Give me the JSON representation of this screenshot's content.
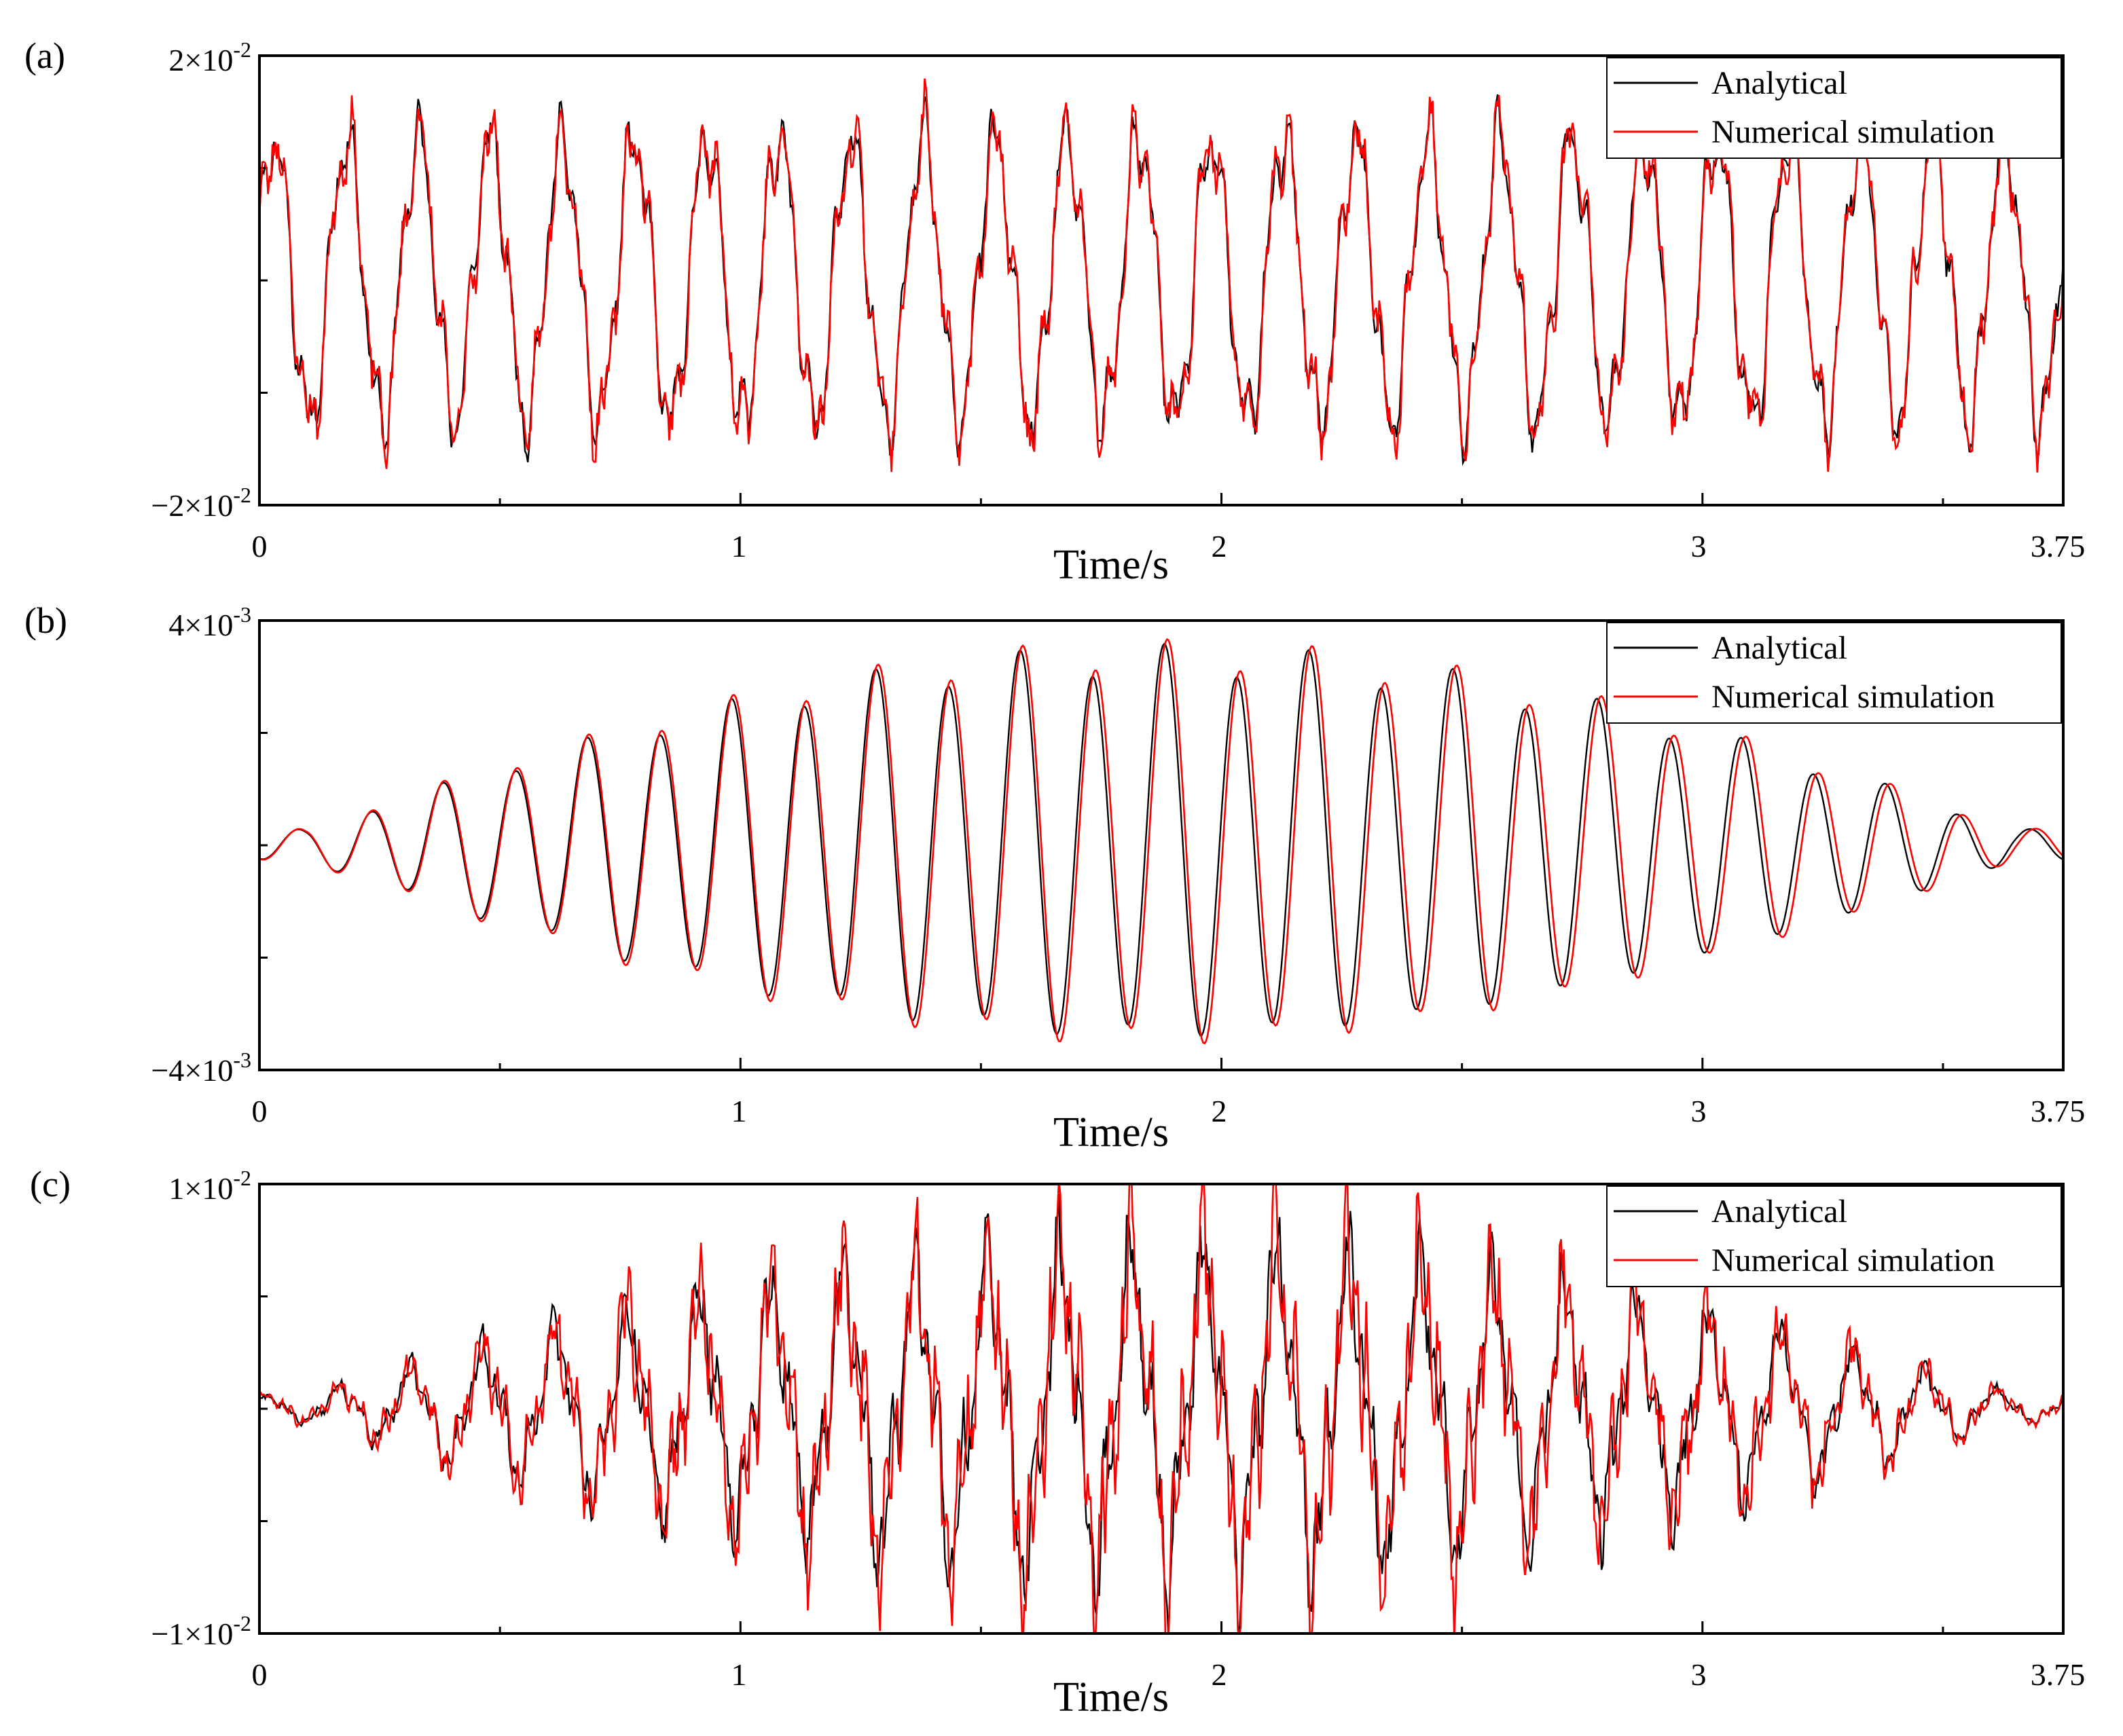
{
  "colors": {
    "analytical": "#000000",
    "numerical": "#ff0000",
    "axis": "#000000",
    "background": "#ffffff"
  },
  "chart_data": [
    {
      "type": "line",
      "panel_label": "(a)",
      "xlabel": "Time/s",
      "xlim": [
        0,
        3.75
      ],
      "x_ticks": [
        0,
        1,
        2,
        3,
        3.75
      ],
      "x_tick_labels": [
        "0",
        "1",
        "2",
        "3",
        "3.75"
      ],
      "ylim": [
        -0.02,
        0.02
      ],
      "y_tick_labels": {
        "top": {
          "base": "2×10",
          "exp": "-2"
        },
        "bottom": {
          "base": "−2×10",
          "exp": "-2"
        }
      },
      "legend": {
        "position": "top-right",
        "entries": [
          "Analytical",
          "Numerical simulation"
        ]
      },
      "signal": {
        "sampling_dt": 0.003,
        "analytical": {
          "offset": 0.0,
          "envelope_start": 0.0,
          "envelope_end": 3.75,
          "envelope_shape": "constant",
          "components": [
            {
              "amplitude": 0.0125,
              "frequency": 6.67,
              "phase": 0.3
            },
            {
              "amplitude": 0.0022,
              "frequency": 21.0,
              "phase": 1.1
            },
            {
              "amplitude": 0.0015,
              "frequency": 37.0,
              "phase": 0.4
            }
          ],
          "noise": 0.001,
          "seed": 11
        },
        "numerical": {
          "offset": 0.0,
          "envelope_start": 0.0,
          "envelope_end": 3.75,
          "envelope_shape": "constant",
          "components": [
            {
              "amplitude": 0.0126,
              "frequency": 6.67,
              "phase": 0.27
            },
            {
              "amplitude": 0.0024,
              "frequency": 21.0,
              "phase": 1.0
            },
            {
              "amplitude": 0.0018,
              "frequency": 37.0,
              "phase": 0.5
            }
          ],
          "noise": 0.0015,
          "seed": 23
        }
      }
    },
    {
      "type": "line",
      "panel_label": "(b)",
      "xlabel": "Time/s",
      "xlim": [
        0,
        3.75
      ],
      "x_ticks": [
        0,
        1,
        2,
        3,
        3.75
      ],
      "x_tick_labels": [
        "0",
        "1",
        "2",
        "3",
        "3.75"
      ],
      "ylim": [
        -0.004,
        0.004
      ],
      "y_tick_labels": {
        "top": {
          "base": "4×10",
          "exp": "-3"
        },
        "bottom": {
          "base": "−4×10",
          "exp": "-3"
        }
      },
      "legend": {
        "position": "top-right",
        "entries": [
          "Analytical",
          "Numerical simulation"
        ]
      },
      "signal": {
        "sampling_dt": 0.003,
        "analytical": {
          "offset": 0.0,
          "envelope_start": 0.0,
          "envelope_end": 3.75,
          "envelope_shape": "bell",
          "components": [
            {
              "amplitude": 0.0033,
              "frequency": 6.67,
              "phase": 4.4
            },
            {
              "amplitude": 0.0003,
              "frequency": 3.3,
              "phase": 0.6
            }
          ],
          "noise": 0.0,
          "seed": 5
        },
        "numerical": {
          "offset": 0.0,
          "envelope_start": 0.0,
          "envelope_end": 3.75,
          "envelope_shape": "bell",
          "components": [
            {
              "amplitude": 0.0034,
              "frequency": 6.65,
              "phase": 4.36
            },
            {
              "amplitude": 0.0003,
              "frequency": 3.3,
              "phase": 0.6
            }
          ],
          "noise": 0.0,
          "seed": 5
        }
      }
    },
    {
      "type": "line",
      "panel_label": "(c)",
      "xlabel": "Time/s",
      "xlim": [
        0,
        3.75
      ],
      "x_ticks": [
        0,
        1,
        2,
        3,
        3.75
      ],
      "x_tick_labels": [
        "0",
        "1",
        "2",
        "3",
        "3.75"
      ],
      "ylim": [
        -0.01,
        0.01
      ],
      "y_tick_labels": {
        "top": {
          "base": "1×10",
          "exp": "-2"
        },
        "bottom": {
          "base": "−1×10",
          "exp": "-2"
        }
      },
      "legend": {
        "position": "top-right",
        "entries": [
          "Analytical",
          "Numerical simulation"
        ]
      },
      "signal": {
        "sampling_dt": 0.003,
        "analytical": {
          "offset": 0.0,
          "envelope_start": 0.0,
          "envelope_end": 3.75,
          "envelope_shape": "bell",
          "components": [
            {
              "amplitude": 0.0062,
              "frequency": 6.67,
              "phase": 0.9
            },
            {
              "amplitude": 0.0018,
              "frequency": 20.0,
              "phase": 0.2
            },
            {
              "amplitude": 0.0012,
              "frequency": 41.0,
              "phase": 1.7
            }
          ],
          "noise": 0.0012,
          "seed": 31
        },
        "numerical": {
          "offset": 0.0,
          "envelope_start": 0.0,
          "envelope_end": 3.75,
          "envelope_shape": "bell",
          "components": [
            {
              "amplitude": 0.0064,
              "frequency": 6.67,
              "phase": 0.86
            },
            {
              "amplitude": 0.002,
              "frequency": 20.0,
              "phase": 0.3
            },
            {
              "amplitude": 0.0022,
              "frequency": 47.0,
              "phase": 0.4
            }
          ],
          "noise": 0.0016,
          "seed": 47
        }
      }
    }
  ]
}
